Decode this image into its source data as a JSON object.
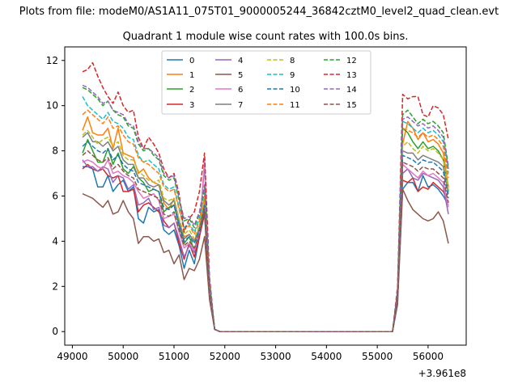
{
  "suptitle": "Plots from file: modeM0/AS1A11_075T01_9000005244_36842cztM0_level2_quad_clean.evt",
  "chart_data": {
    "type": "line",
    "title": "Quadrant 1 module wise count rates with 100.0s bins.",
    "xlabel": "",
    "ylabel": "",
    "x_offset_label": "+3.961e8",
    "xlim": [
      48850,
      56750
    ],
    "ylim": [
      -0.6,
      12.6
    ],
    "xticks": [
      49000,
      50000,
      51000,
      52000,
      53000,
      54000,
      55000,
      56000
    ],
    "yticks": [
      0,
      2,
      4,
      6,
      8,
      10,
      12
    ],
    "legend_position": "upper-center",
    "legend_columns": 4,
    "x": [
      49200,
      49300,
      49400,
      49500,
      49600,
      49700,
      49800,
      49900,
      50000,
      50100,
      50200,
      50300,
      50400,
      50500,
      50600,
      50700,
      50800,
      50900,
      51000,
      51100,
      51200,
      51300,
      51400,
      51500,
      51600,
      51700,
      51800,
      51900,
      52000,
      52100,
      52200,
      52300,
      52400,
      52500,
      52600,
      52700,
      52800,
      52900,
      53000,
      53100,
      53200,
      53300,
      53400,
      53500,
      53600,
      53700,
      53800,
      53900,
      54000,
      54100,
      54200,
      54300,
      54400,
      54500,
      54600,
      54700,
      54800,
      54900,
      55000,
      55100,
      55200,
      55300,
      55400,
      55500,
      55600,
      55700,
      55800,
      55900,
      56000,
      56100,
      56200,
      56300,
      56400
    ],
    "series": [
      {
        "name": "0",
        "color": "#1f77b4",
        "dash": "solid",
        "values": [
          7.3,
          7.3,
          7.2,
          6.4,
          6.4,
          6.9,
          6.2,
          6.5,
          6.7,
          6.2,
          6.4,
          5.0,
          4.8,
          5.5,
          5.3,
          5.4,
          4.5,
          4.3,
          4.5,
          3.8,
          2.8,
          3.6,
          3.0,
          4.2,
          5.2,
          1.6,
          0.1,
          0,
          0,
          0,
          0,
          0,
          0,
          0,
          0,
          0,
          0,
          0,
          0,
          0,
          0,
          0,
          0,
          0,
          0,
          0,
          0,
          0,
          0,
          0,
          0,
          0,
          0,
          0,
          0,
          0,
          0,
          0,
          0,
          0,
          0,
          0,
          1.4,
          6.3,
          6.6,
          6.6,
          6.2,
          6.9,
          6.4,
          6.5,
          6.3,
          6.0,
          5.6
        ]
      },
      {
        "name": "1",
        "color": "#ff7f0e",
        "dash": "solid",
        "values": [
          8.9,
          9.5,
          8.8,
          8.7,
          8.7,
          9.0,
          8.1,
          9.0,
          7.9,
          7.8,
          7.7,
          7.0,
          7.2,
          6.8,
          6.6,
          6.5,
          5.7,
          5.4,
          5.9,
          4.8,
          4.2,
          4.3,
          4.0,
          4.4,
          5.6,
          1.9,
          0.1,
          0,
          0,
          0,
          0,
          0,
          0,
          0,
          0,
          0,
          0,
          0,
          0,
          0,
          0,
          0,
          0,
          0,
          0,
          0,
          0,
          0,
          0,
          0,
          0,
          0,
          0,
          0,
          0,
          0,
          0,
          0,
          0,
          0,
          0,
          0,
          1.6,
          8.3,
          9.3,
          9.0,
          8.5,
          8.8,
          8.4,
          8.5,
          8.3,
          7.9,
          6.4
        ]
      },
      {
        "name": "2",
        "color": "#2ca02c",
        "dash": "solid",
        "values": [
          7.9,
          8.5,
          8.0,
          7.5,
          7.5,
          8.1,
          7.4,
          7.9,
          7.2,
          7.0,
          7.3,
          6.8,
          6.6,
          6.2,
          6.3,
          6.2,
          5.3,
          5.5,
          5.6,
          4.7,
          3.9,
          4.2,
          3.6,
          4.5,
          5.5,
          1.8,
          0.1,
          0,
          0,
          0,
          0,
          0,
          0,
          0,
          0,
          0,
          0,
          0,
          0,
          0,
          0,
          0,
          0,
          0,
          0,
          0,
          0,
          0,
          0,
          0,
          0,
          0,
          0,
          0,
          0,
          0,
          0,
          0,
          0,
          0,
          0,
          0,
          1.5,
          9.0,
          8.8,
          8.4,
          8.1,
          8.4,
          8.1,
          8.2,
          8.0,
          7.6,
          6.2
        ]
      },
      {
        "name": "3",
        "color": "#d62728",
        "dash": "solid",
        "values": [
          7.2,
          7.4,
          7.2,
          7.1,
          7.2,
          6.9,
          6.8,
          6.9,
          6.2,
          6.2,
          6.3,
          5.3,
          5.6,
          5.7,
          5.5,
          5.3,
          4.9,
          4.6,
          4.8,
          3.9,
          3.2,
          3.9,
          3.3,
          4.2,
          5.3,
          1.7,
          0.1,
          0,
          0,
          0,
          0,
          0,
          0,
          0,
          0,
          0,
          0,
          0,
          0,
          0,
          0,
          0,
          0,
          0,
          0,
          0,
          0,
          0,
          0,
          0,
          0,
          0,
          0,
          0,
          0,
          0,
          0,
          0,
          0,
          0,
          0,
          0,
          1.4,
          6.7,
          6.6,
          6.8,
          6.2,
          6.4,
          6.3,
          6.6,
          6.4,
          6.2,
          5.7
        ]
      },
      {
        "name": "4",
        "color": "#9467bd",
        "dash": "solid",
        "values": [
          7.6,
          7.3,
          7.3,
          7.1,
          7.3,
          7.2,
          6.6,
          6.9,
          6.8,
          6.3,
          6.5,
          5.6,
          5.7,
          5.9,
          5.4,
          5.5,
          4.7,
          4.6,
          4.8,
          4.1,
          3.3,
          3.8,
          3.5,
          4.4,
          7.4,
          1.7,
          0.1,
          0,
          0,
          0,
          0,
          0,
          0,
          0,
          0,
          0,
          0,
          0,
          0,
          0,
          0,
          0,
          0,
          0,
          0,
          0,
          0,
          0,
          0,
          0,
          0,
          0,
          0,
          0,
          0,
          0,
          0,
          0,
          0,
          0,
          0,
          0,
          1.5,
          7.0,
          7.2,
          6.8,
          6.7,
          7.0,
          6.9,
          6.8,
          6.7,
          6.4,
          5.2
        ]
      },
      {
        "name": "5",
        "color": "#8c564b",
        "dash": "solid",
        "values": [
          6.1,
          6.0,
          5.9,
          5.7,
          5.5,
          5.8,
          5.2,
          5.3,
          5.8,
          5.3,
          5.0,
          3.9,
          4.2,
          4.2,
          4.0,
          4.1,
          3.5,
          3.6,
          3.0,
          3.4,
          2.3,
          2.8,
          2.7,
          3.2,
          4.2,
          1.4,
          0.1,
          0,
          0,
          0,
          0,
          0,
          0,
          0,
          0,
          0,
          0,
          0,
          0,
          0,
          0,
          0,
          0,
          0,
          0,
          0,
          0,
          0,
          0,
          0,
          0,
          0,
          0,
          0,
          0,
          0,
          0,
          0,
          0,
          0,
          0,
          0,
          1.2,
          6.3,
          5.8,
          5.4,
          5.2,
          5.0,
          4.9,
          5.0,
          5.3,
          4.9,
          3.9
        ]
      },
      {
        "name": "6",
        "color": "#e377c2",
        "dash": "solid",
        "values": [
          7.5,
          7.6,
          7.5,
          7.3,
          7.2,
          7.6,
          7.0,
          7.1,
          6.9,
          6.8,
          6.6,
          6.2,
          5.9,
          6.0,
          6.1,
          5.8,
          5.0,
          5.1,
          5.2,
          4.4,
          3.7,
          3.9,
          3.6,
          4.4,
          7.6,
          1.7,
          0.1,
          0,
          0,
          0,
          0,
          0,
          0,
          0,
          0,
          0,
          0,
          0,
          0,
          0,
          0,
          0,
          0,
          0,
          0,
          0,
          0,
          0,
          0,
          0,
          0,
          0,
          0,
          0,
          0,
          0,
          0,
          0,
          0,
          0,
          0,
          0,
          1.5,
          7.4,
          7.2,
          7.0,
          6.8,
          7.1,
          6.9,
          7.0,
          6.8,
          6.6,
          5.5
        ]
      },
      {
        "name": "7",
        "color": "#7f7f7f",
        "dash": "solid",
        "values": [
          8.6,
          8.8,
          8.4,
          8.4,
          8.2,
          8.4,
          8.0,
          8.2,
          7.6,
          7.4,
          7.4,
          6.8,
          6.8,
          6.5,
          6.4,
          6.5,
          5.8,
          5.6,
          5.8,
          4.9,
          4.1,
          4.3,
          4.0,
          4.6,
          5.7,
          1.9,
          0.1,
          0,
          0,
          0,
          0,
          0,
          0,
          0,
          0,
          0,
          0,
          0,
          0,
          0,
          0,
          0,
          0,
          0,
          0,
          0,
          0,
          0,
          0,
          0,
          0,
          0,
          0,
          0,
          0,
          0,
          0,
          0,
          0,
          0,
          0,
          0,
          1.6,
          8.0,
          7.9,
          7.9,
          7.6,
          7.8,
          7.7,
          7.6,
          7.5,
          7.3,
          6.1
        ]
      },
      {
        "name": "8",
        "color": "#bcbd22",
        "dash": "dashed",
        "values": [
          8.7,
          8.9,
          8.6,
          8.3,
          8.5,
          8.6,
          8.2,
          8.4,
          7.8,
          7.6,
          7.6,
          7.1,
          6.9,
          6.7,
          6.6,
          6.7,
          5.9,
          5.8,
          5.9,
          5.0,
          4.3,
          4.5,
          4.1,
          4.7,
          5.9,
          1.9,
          0.1,
          0,
          0,
          0,
          0,
          0,
          0,
          0,
          0,
          0,
          0,
          0,
          0,
          0,
          0,
          0,
          0,
          0,
          0,
          0,
          0,
          0,
          0,
          0,
          0,
          0,
          0,
          0,
          0,
          0,
          0,
          0,
          0,
          0,
          0,
          0,
          1.6,
          8.2,
          8.4,
          8.1,
          7.9,
          8.2,
          8.0,
          8.1,
          7.9,
          7.6,
          6.3
        ]
      },
      {
        "name": "9",
        "color": "#17becf",
        "dash": "dashed",
        "values": [
          10.4,
          10.0,
          9.8,
          9.6,
          9.4,
          9.7,
          9.3,
          9.2,
          9.0,
          8.6,
          8.5,
          7.8,
          7.5,
          7.6,
          7.4,
          7.2,
          6.5,
          6.3,
          6.4,
          5.5,
          4.6,
          4.8,
          4.4,
          5.0,
          6.2,
          2.1,
          0.1,
          0,
          0,
          0,
          0,
          0,
          0,
          0,
          0,
          0,
          0,
          0,
          0,
          0,
          0,
          0,
          0,
          0,
          0,
          0,
          0,
          0,
          0,
          0,
          0,
          0,
          0,
          0,
          0,
          0,
          0,
          0,
          0,
          0,
          0,
          0,
          1.7,
          9.3,
          9.2,
          9.0,
          8.8,
          9.0,
          8.8,
          8.9,
          8.7,
          8.4,
          7.0
        ]
      },
      {
        "name": "10",
        "color": "#1f77b4",
        "dash": "dashed",
        "values": [
          8.2,
          8.4,
          8.2,
          8.0,
          7.9,
          8.1,
          7.6,
          7.8,
          7.4,
          7.2,
          7.1,
          6.6,
          6.5,
          6.4,
          6.3,
          6.2,
          5.5,
          5.4,
          5.6,
          4.7,
          4.0,
          4.2,
          3.9,
          4.5,
          5.6,
          1.8,
          0.1,
          0,
          0,
          0,
          0,
          0,
          0,
          0,
          0,
          0,
          0,
          0,
          0,
          0,
          0,
          0,
          0,
          0,
          0,
          0,
          0,
          0,
          0,
          0,
          0,
          0,
          0,
          0,
          0,
          0,
          0,
          0,
          0,
          0,
          0,
          0,
          1.5,
          7.8,
          7.7,
          7.6,
          7.4,
          7.6,
          7.5,
          7.5,
          7.3,
          7.1,
          5.9
        ]
      },
      {
        "name": "11",
        "color": "#ff7f0e",
        "dash": "dashed",
        "values": [
          9.6,
          9.8,
          9.6,
          9.4,
          9.2,
          9.5,
          9.0,
          9.1,
          8.7,
          8.4,
          8.3,
          7.7,
          7.5,
          7.4,
          7.2,
          7.0,
          6.4,
          6.2,
          6.3,
          5.4,
          4.5,
          4.7,
          4.3,
          4.9,
          6.0,
          2.0,
          0.1,
          0,
          0,
          0,
          0,
          0,
          0,
          0,
          0,
          0,
          0,
          0,
          0,
          0,
          0,
          0,
          0,
          0,
          0,
          0,
          0,
          0,
          0,
          0,
          0,
          0,
          0,
          0,
          0,
          0,
          0,
          0,
          0,
          0,
          0,
          0,
          1.7,
          9.0,
          8.9,
          8.8,
          8.6,
          8.8,
          8.6,
          8.7,
          8.5,
          8.2,
          6.8
        ]
      },
      {
        "name": "12",
        "color": "#2ca02c",
        "dash": "dashed",
        "values": [
          10.8,
          10.7,
          10.5,
          10.3,
          10.0,
          10.2,
          9.8,
          9.6,
          9.5,
          9.1,
          9.0,
          8.3,
          8.0,
          8.1,
          7.8,
          7.6,
          6.9,
          6.7,
          6.8,
          5.8,
          4.9,
          5.0,
          4.6,
          5.2,
          6.4,
          2.2,
          0.1,
          0,
          0,
          0,
          0,
          0,
          0,
          0,
          0,
          0,
          0,
          0,
          0,
          0,
          0,
          0,
          0,
          0,
          0,
          0,
          0,
          0,
          0,
          0,
          0,
          0,
          0,
          0,
          0,
          0,
          0,
          0,
          0,
          0,
          0,
          0,
          1.8,
          9.6,
          9.8,
          9.5,
          9.2,
          9.4,
          9.2,
          9.3,
          9.1,
          8.8,
          7.3
        ]
      },
      {
        "name": "13",
        "color": "#d62728",
        "dash": "dashed",
        "values": [
          11.5,
          11.6,
          11.9,
          11.3,
          10.8,
          10.4,
          10.1,
          10.6,
          10.0,
          9.7,
          9.8,
          8.6,
          8.1,
          8.6,
          8.3,
          7.9,
          7.2,
          6.8,
          7.0,
          6.1,
          4.4,
          5.0,
          5.3,
          6.2,
          7.9,
          2.4,
          0.1,
          0,
          0,
          0,
          0,
          0,
          0,
          0,
          0,
          0,
          0,
          0,
          0,
          0,
          0,
          0,
          0,
          0,
          0,
          0,
          0,
          0,
          0,
          0,
          0,
          0,
          0,
          0,
          0,
          0,
          0,
          0,
          0,
          0,
          0,
          0,
          2.0,
          10.5,
          10.3,
          10.4,
          10.4,
          9.6,
          9.5,
          10.0,
          9.9,
          9.6,
          8.5
        ]
      },
      {
        "name": "14",
        "color": "#9467bd",
        "dash": "dashed",
        "values": [
          10.9,
          10.8,
          10.6,
          10.4,
          10.1,
          10.2,
          9.8,
          9.7,
          9.6,
          9.2,
          9.1,
          8.4,
          8.1,
          8.1,
          7.9,
          7.7,
          7.0,
          6.8,
          6.9,
          5.9,
          5.0,
          5.1,
          4.7,
          5.3,
          6.5,
          2.2,
          0.1,
          0,
          0,
          0,
          0,
          0,
          0,
          0,
          0,
          0,
          0,
          0,
          0,
          0,
          0,
          0,
          0,
          0,
          0,
          0,
          0,
          0,
          0,
          0,
          0,
          0,
          0,
          0,
          0,
          0,
          0,
          0,
          0,
          0,
          0,
          0,
          1.8,
          9.4,
          9.5,
          9.3,
          9.1,
          9.2,
          9.0,
          9.1,
          8.9,
          8.6,
          7.2
        ]
      },
      {
        "name": "15",
        "color": "#8c564b",
        "dash": "dashed",
        "values": [
          7.8,
          8.0,
          7.8,
          7.6,
          7.5,
          7.7,
          7.2,
          7.4,
          7.1,
          6.9,
          6.8,
          6.3,
          6.2,
          6.1,
          6.0,
          5.9,
          5.2,
          5.1,
          5.3,
          4.5,
          3.8,
          4.0,
          3.7,
          4.3,
          5.4,
          1.7,
          0.1,
          0,
          0,
          0,
          0,
          0,
          0,
          0,
          0,
          0,
          0,
          0,
          0,
          0,
          0,
          0,
          0,
          0,
          0,
          0,
          0,
          0,
          0,
          0,
          0,
          0,
          0,
          0,
          0,
          0,
          0,
          0,
          0,
          0,
          0,
          0,
          1.5,
          7.5,
          7.4,
          7.3,
          7.1,
          7.3,
          7.2,
          7.2,
          7.0,
          6.8,
          5.7
        ]
      }
    ]
  }
}
